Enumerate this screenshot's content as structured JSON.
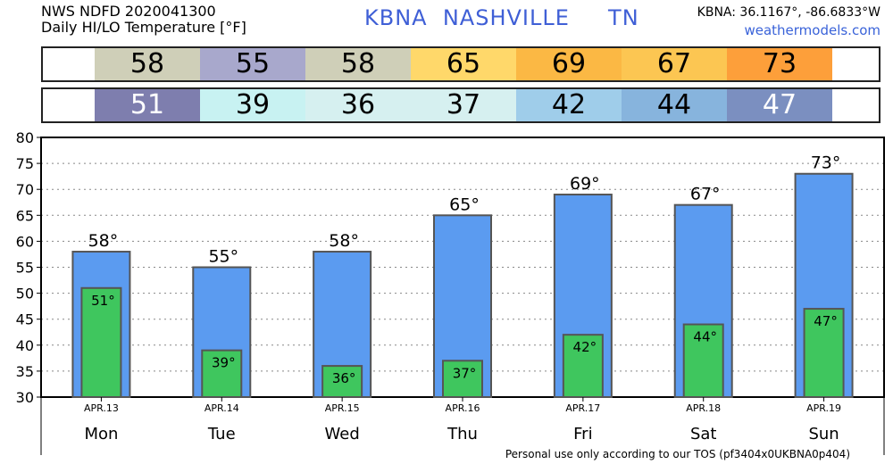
{
  "header": {
    "line1": "NWS NDFD 2020041300",
    "line2": "Daily HI/LO Temperature [°F]",
    "station": "KBNA  NASHVILLE     TN",
    "coords": "KBNA: 36.1167°, -86.6833°W",
    "site": "weathermodels.com"
  },
  "footer": "Personal use only according to our TOS (pf3404x0UKBNA0p404)",
  "colors": {
    "bar_high": "#5b9bf0",
    "bar_low": "#3fc65e",
    "bar_stroke": "#555555",
    "hi_cells": [
      "#cfcfb8",
      "#a8a8cc",
      "#cfcfb8",
      "#ffd86a",
      "#fbb844",
      "#fcc652",
      "#fd9f3a"
    ],
    "lo_cells": [
      "#7e7eae",
      "#c8f2f2",
      "#d6f0f0",
      "#d6f0f0",
      "#9fcdea",
      "#87b4dd",
      "#7b8fc0"
    ],
    "lo_text": [
      "#ffffff",
      "#000000",
      "#000000",
      "#000000",
      "#000000",
      "#000000",
      "#ffffff"
    ]
  },
  "chart_data": {
    "type": "bar",
    "categories": [
      "Mon",
      "Tue",
      "Wed",
      "Thu",
      "Fri",
      "Sat",
      "Sun"
    ],
    "dates": [
      "APR.13",
      "APR.14",
      "APR.15",
      "APR.16",
      "APR.17",
      "APR.18",
      "APR.19"
    ],
    "series": [
      {
        "values": [
          58,
          55,
          58,
          65,
          69,
          67,
          73
        ]
      },
      {
        "values": [
          51,
          39,
          36,
          37,
          42,
          44,
          47
        ]
      }
    ],
    "ylim": [
      30,
      80
    ],
    "yticks": [
      30,
      35,
      40,
      45,
      50,
      55,
      60,
      65,
      70,
      75,
      80
    ],
    "grid": true,
    "value_suffix": "°"
  }
}
